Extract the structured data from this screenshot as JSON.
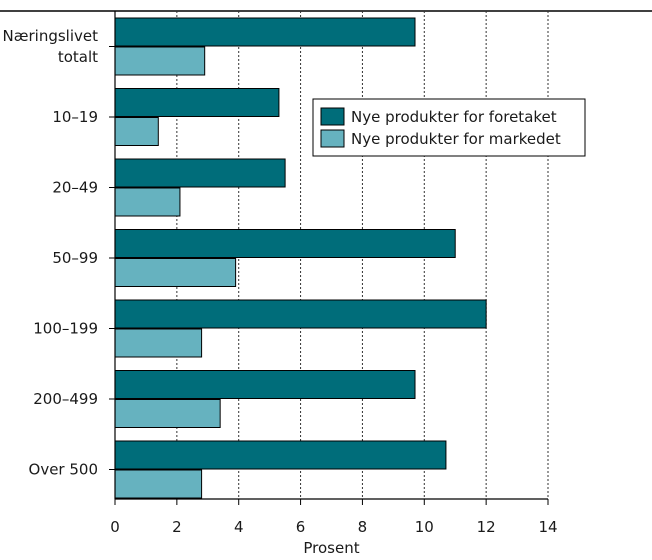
{
  "chart_data": {
    "type": "bar",
    "orientation": "horizontal",
    "title": "",
    "xlabel": "Prosent",
    "ylabel": "",
    "xlim": [
      0,
      14
    ],
    "x_ticks": [
      0,
      2,
      4,
      6,
      8,
      10,
      12,
      14
    ],
    "grid": "vertical dashed",
    "legend_position": "top-right",
    "categories": [
      [
        "Næringslivet",
        "totalt"
      ],
      [
        "10–19"
      ],
      [
        "20–49"
      ],
      [
        "50–99"
      ],
      [
        "100–199"
      ],
      [
        "200–499"
      ],
      [
        "Over 500"
      ]
    ],
    "series": [
      {
        "name": "Nye produkter for foretaket",
        "color": "#006d7a",
        "values": [
          9.7,
          5.3,
          5.5,
          11.0,
          12.0,
          9.7,
          10.7
        ]
      },
      {
        "name": "Nye produkter for markedet",
        "color": "#66b2bf",
        "values": [
          2.9,
          1.4,
          2.1,
          3.9,
          2.8,
          3.4,
          2.8
        ]
      }
    ]
  }
}
